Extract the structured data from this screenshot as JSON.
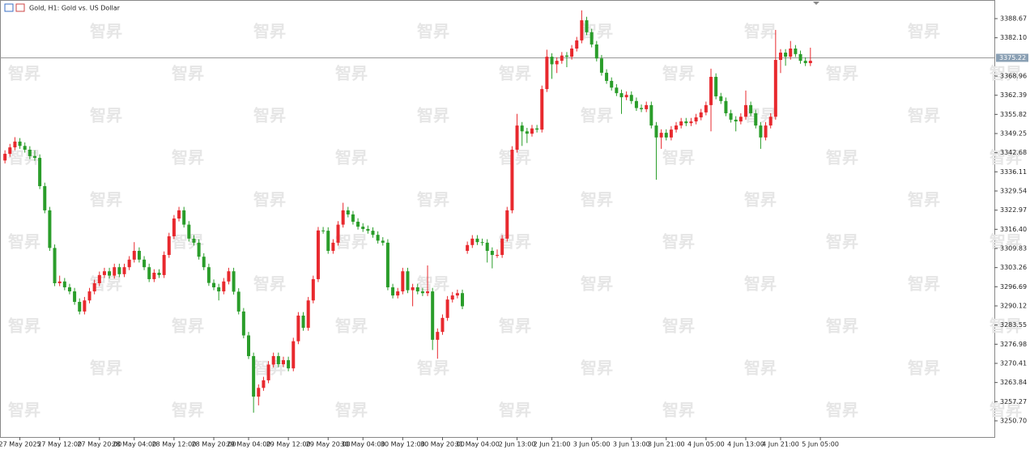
{
  "chart_data": {
    "type": "candlestick",
    "title": "Gold, H1:  Gold vs. US Dollar",
    "watermark": "智昇",
    "up_color": "#e8292e",
    "down_color": "#2a9d2a",
    "last_price": 3375.22,
    "ylim": [
      3245.15,
      3394.5
    ],
    "yticks": [
      3388.67,
      {
        "value": 3382.1,
        "label": "3382.10"
      },
      3368.96,
      3362.39,
      3355.82,
      3349.25,
      3342.68,
      3336.11,
      3329.54,
      3322.97,
      {
        "value": 3316.4,
        "label": "3316.40"
      },
      3309.83,
      3303.26,
      3296.69,
      3290.12,
      3283.55,
      3276.98,
      3270.41,
      3263.84,
      3257.27,
      {
        "value": 3250.7,
        "label": "3250.70"
      }
    ],
    "xlim": [
      -1,
      199
    ],
    "xticks": [
      {
        "value": 3,
        "label": "27 May 2025"
      },
      {
        "value": 11,
        "label": "27 May 12:00"
      },
      {
        "value": 19,
        "label": "27 May 20:00"
      },
      {
        "value": 26,
        "label": "28 May 04:00"
      },
      {
        "value": 34,
        "label": "28 May 12:00"
      },
      {
        "value": 42,
        "label": "28 May 20:00"
      },
      {
        "value": 49,
        "label": "29 May 04:00"
      },
      {
        "value": 57,
        "label": "29 May 12:00"
      },
      {
        "value": 65,
        "label": "29 May 20:00"
      },
      {
        "value": 72,
        "label": "30 May 04:00"
      },
      {
        "value": 80,
        "label": "30 May 12:00"
      },
      {
        "value": 88,
        "label": "30 May 20:00"
      },
      {
        "value": 95,
        "label": "31 May 04:00"
      },
      {
        "value": 103,
        "label": "2 Jun 13:00"
      },
      {
        "value": 110,
        "label": "2 Jun 21:00"
      },
      {
        "value": 118,
        "label": "3 Jun 05:00"
      },
      {
        "value": 126,
        "label": "3 Jun 13:00"
      },
      {
        "value": 133,
        "label": "3 Jun 21:00"
      },
      {
        "value": 141,
        "label": "4 Jun 05:00"
      },
      {
        "value": 149,
        "label": "4 Jun 13:00"
      },
      {
        "value": 156,
        "label": "4 Jun 21:00"
      },
      {
        "value": 164,
        "label": "5 Jun 05:00"
      }
    ],
    "ohlc": [
      [
        3340.0,
        3343.5,
        3339.0,
        3342.3
      ],
      [
        3342.3,
        3345.7,
        3341.3,
        3344.5
      ],
      [
        3344.5,
        3348.0,
        3343.5,
        3346.5
      ],
      [
        3346.5,
        3347.7,
        3344.0,
        3345.0
      ],
      [
        3345.0,
        3346.2,
        3342.7,
        3343.7
      ],
      [
        3343.7,
        3344.9,
        3340.5,
        3341.5
      ],
      [
        3341.5,
        3343.5,
        3339.9,
        3340.9
      ],
      [
        3340.9,
        3342.1,
        3330.2,
        3331.2
      ],
      [
        3331.2,
        3332.4,
        3321.9,
        3322.9
      ],
      [
        3322.9,
        3324.1,
        3309.0,
        3310.0
      ],
      [
        3310.0,
        3311.2,
        3296.9,
        3297.9
      ],
      [
        3297.9,
        3300.5,
        3296.9,
        3298.5
      ],
      [
        3298.5,
        3299.7,
        3295.5,
        3296.5
      ],
      [
        3296.5,
        3297.7,
        3294.1,
        3295.1
      ],
      [
        3295.1,
        3296.3,
        3290.5,
        3291.5
      ],
      [
        3291.5,
        3292.7,
        3287.2,
        3288.2
      ],
      [
        3288.2,
        3293.2,
        3287.2,
        3292.0
      ],
      [
        3292.0,
        3296.3,
        3291.0,
        3295.1
      ],
      [
        3295.1,
        3299.1,
        3294.1,
        3297.9
      ],
      [
        3297.9,
        3301.9,
        3296.9,
        3300.7
      ],
      [
        3300.7,
        3303.2,
        3299.7,
        3302.0
      ],
      [
        3302.0,
        3303.2,
        3299.5,
        3300.5
      ],
      [
        3300.5,
        3304.6,
        3299.5,
        3303.4
      ],
      [
        3303.4,
        3304.6,
        3300.0,
        3301.0
      ],
      [
        3301.0,
        3304.6,
        3300.0,
        3303.4
      ],
      [
        3303.4,
        3307.2,
        3302.4,
        3306.0
      ],
      [
        3306.0,
        3312.0,
        3305.0,
        3309.0
      ],
      [
        3309.0,
        3310.2,
        3305.0,
        3306.0
      ],
      [
        3306.0,
        3307.2,
        3302.4,
        3303.4
      ],
      [
        3303.4,
        3304.6,
        3298.3,
        3299.3
      ],
      [
        3299.3,
        3302.7,
        3298.3,
        3301.5
      ],
      [
        3301.5,
        3302.7,
        3299.7,
        3300.7
      ],
      [
        3300.7,
        3308.8,
        3299.7,
        3307.6
      ],
      [
        3307.6,
        3315.2,
        3306.6,
        3314.0
      ],
      [
        3314.0,
        3321.3,
        3313.0,
        3320.1
      ],
      [
        3320.1,
        3324.1,
        3319.1,
        3322.9
      ],
      [
        3322.9,
        3324.1,
        3317.0,
        3318.0
      ],
      [
        3318.0,
        3319.2,
        3312.2,
        3313.2
      ],
      [
        3313.2,
        3314.4,
        3310.8,
        3311.8
      ],
      [
        3311.8,
        3313.0,
        3306.0,
        3307.0
      ],
      [
        3307.0,
        3308.2,
        3302.4,
        3303.4
      ],
      [
        3303.4,
        3304.6,
        3297.0,
        3298.0
      ],
      [
        3298.0,
        3299.2,
        3295.5,
        3296.5
      ],
      [
        3296.5,
        3297.7,
        3292.0,
        3295.1
      ],
      [
        3295.1,
        3299.7,
        3294.1,
        3298.5
      ],
      [
        3298.5,
        3303.2,
        3297.5,
        3302.0
      ],
      [
        3302.0,
        3303.2,
        3294.0,
        3295.0
      ],
      [
        3295.0,
        3296.2,
        3287.2,
        3288.2
      ],
      [
        3288.2,
        3289.4,
        3279.0,
        3280.0
      ],
      [
        3280.0,
        3281.2,
        3271.9,
        3272.9
      ],
      [
        3272.9,
        3274.1,
        3253.5,
        3259.0
      ],
      [
        3259.0,
        3263.2,
        3256.0,
        3262.0
      ],
      [
        3262.0,
        3265.8,
        3261.0,
        3264.6
      ],
      [
        3264.6,
        3271.2,
        3263.6,
        3270.0
      ],
      [
        3270.0,
        3274.1,
        3269.0,
        3272.9
      ],
      [
        3272.9,
        3274.1,
        3269.1,
        3270.1
      ],
      [
        3270.1,
        3272.7,
        3269.1,
        3271.5
      ],
      [
        3271.5,
        3272.7,
        3267.7,
        3268.7
      ],
      [
        3268.7,
        3279.2,
        3267.7,
        3278.0
      ],
      [
        3278.0,
        3288.0,
        3277.0,
        3286.8
      ],
      [
        3286.8,
        3288.0,
        3281.6,
        3282.6
      ],
      [
        3282.6,
        3293.2,
        3281.6,
        3292.0
      ],
      [
        3292.0,
        3300.5,
        3291.0,
        3299.3
      ],
      [
        3299.3,
        3317.2,
        3298.3,
        3316.0
      ],
      [
        3316.0,
        3317.2,
        3314.9,
        3315.9
      ],
      [
        3315.9,
        3317.1,
        3308.0,
        3309.0
      ],
      [
        3309.0,
        3313.0,
        3308.0,
        3311.8
      ],
      [
        3311.8,
        3319.2,
        3310.8,
        3318.0
      ],
      [
        3318.0,
        3325.5,
        3317.0,
        3322.9
      ],
      [
        3322.9,
        3324.1,
        3320.5,
        3321.5
      ],
      [
        3321.5,
        3322.7,
        3318.0,
        3319.0
      ],
      [
        3319.0,
        3320.2,
        3316.3,
        3317.3
      ],
      [
        3317.3,
        3318.5,
        3315.5,
        3316.5
      ],
      [
        3316.5,
        3317.7,
        3314.9,
        3315.9
      ],
      [
        3315.9,
        3317.1,
        3313.5,
        3314.5
      ],
      [
        3314.5,
        3315.7,
        3311.5,
        3312.5
      ],
      [
        3312.5,
        3313.7,
        3310.8,
        3311.8
      ],
      [
        3311.8,
        3313.0,
        3295.5,
        3296.5
      ],
      [
        3296.5,
        3297.7,
        3292.7,
        3293.7
      ],
      [
        3293.7,
        3296.3,
        3292.7,
        3295.1
      ],
      [
        3295.1,
        3303.2,
        3294.1,
        3302.0
      ],
      [
        3302.0,
        3303.2,
        3294.5,
        3295.5
      ],
      [
        3295.5,
        3297.7,
        3290.0,
        3296.5
      ],
      [
        3296.5,
        3297.7,
        3294.1,
        3295.1
      ],
      [
        3295.1,
        3296.3,
        3293.5,
        3294.5
      ],
      [
        3294.5,
        3304.0,
        3293.5,
        3295.1
      ],
      [
        3295.1,
        3296.3,
        3275.0,
        3278.5
      ],
      [
        3278.5,
        3282.4,
        3272.0,
        3281.2
      ],
      [
        3281.2,
        3287.2,
        3280.2,
        3286.0
      ],
      [
        3286.0,
        3293.5,
        3285.0,
        3292.3
      ],
      [
        3292.3,
        3294.9,
        3291.3,
        3293.7
      ],
      [
        3293.7,
        3295.7,
        3292.7,
        3294.5
      ],
      [
        3294.5,
        3295.7,
        3289.0,
        3290.0
      ],
      [
        3309.0,
        3312.2,
        3308.0,
        3311.0
      ],
      [
        3311.0,
        3314.4,
        3310.0,
        3313.2
      ],
      [
        3313.2,
        3314.4,
        3311.0,
        3312.0
      ],
      [
        3312.0,
        3313.2,
        3310.8,
        3311.8
      ],
      [
        3311.8,
        3313.0,
        3305.0,
        3309.0
      ],
      [
        3309.0,
        3310.2,
        3303.0,
        3307.6
      ],
      [
        3307.6,
        3309.5,
        3306.6,
        3307.6
      ],
      [
        3307.6,
        3314.4,
        3306.6,
        3313.2
      ],
      [
        3313.2,
        3324.1,
        3312.2,
        3322.9
      ],
      [
        3322.9,
        3344.9,
        3321.9,
        3343.7
      ],
      [
        3343.7,
        3356.0,
        3342.7,
        3352.0
      ],
      [
        3352.0,
        3353.2,
        3345.0,
        3350.0
      ],
      [
        3350.0,
        3351.2,
        3346.0,
        3349.2
      ],
      [
        3349.2,
        3352.2,
        3348.2,
        3351.0
      ],
      [
        3351.0,
        3352.2,
        3349.6,
        3350.6
      ],
      [
        3350.6,
        3365.7,
        3349.6,
        3364.5
      ],
      [
        3364.5,
        3378.0,
        3363.5,
        3375.6
      ],
      [
        3375.6,
        3376.8,
        3368.0,
        3373.0
      ],
      [
        3373.0,
        3375.4,
        3370.0,
        3374.2
      ],
      [
        3374.2,
        3377.2,
        3373.2,
        3376.0
      ],
      [
        3376.0,
        3377.2,
        3372.0,
        3375.6
      ],
      [
        3375.6,
        3379.6,
        3374.6,
        3378.4
      ],
      [
        3378.4,
        3382.4,
        3377.4,
        3381.2
      ],
      [
        3381.2,
        3391.5,
        3380.2,
        3388.1
      ],
      [
        3388.1,
        3389.3,
        3383.0,
        3384.0
      ],
      [
        3384.0,
        3385.2,
        3378.8,
        3379.8
      ],
      [
        3379.8,
        3381.0,
        3374.0,
        3375.0
      ],
      [
        3375.0,
        3376.2,
        3369.1,
        3370.1
      ],
      [
        3370.1,
        3371.3,
        3366.3,
        3367.3
      ],
      [
        3367.3,
        3368.5,
        3364.0,
        3365.0
      ],
      [
        3365.0,
        3366.2,
        3362.1,
        3363.1
      ],
      [
        3363.1,
        3364.3,
        3356.0,
        3361.7
      ],
      [
        3361.7,
        3363.7,
        3360.7,
        3362.5
      ],
      [
        3362.5,
        3363.7,
        3359.4,
        3360.4
      ],
      [
        3360.4,
        3361.6,
        3357.0,
        3358.0
      ],
      [
        3358.0,
        3359.2,
        3356.6,
        3357.6
      ],
      [
        3357.6,
        3360.2,
        3356.6,
        3359.0
      ],
      [
        3359.0,
        3360.2,
        3351.0,
        3352.0
      ],
      [
        3352.0,
        3353.2,
        3333.4,
        3347.9
      ],
      [
        3347.9,
        3350.7,
        3344.0,
        3349.5
      ],
      [
        3349.5,
        3350.7,
        3346.9,
        3347.9
      ],
      [
        3347.9,
        3351.8,
        3346.9,
        3350.6
      ],
      [
        3350.6,
        3353.2,
        3349.6,
        3352.0
      ],
      [
        3352.0,
        3354.6,
        3351.0,
        3353.4
      ],
      [
        3353.4,
        3354.6,
        3351.8,
        3352.8
      ],
      [
        3352.8,
        3354.6,
        3351.8,
        3353.4
      ],
      [
        3353.4,
        3356.0,
        3352.4,
        3354.8
      ],
      [
        3354.8,
        3357.7,
        3353.8,
        3356.5
      ],
      [
        3356.5,
        3360.2,
        3355.5,
        3359.0
      ],
      [
        3359.0,
        3371.5,
        3350.0,
        3368.7
      ],
      [
        3368.7,
        3369.9,
        3361.0,
        3362.0
      ],
      [
        3362.0,
        3363.2,
        3359.4,
        3360.4
      ],
      [
        3360.4,
        3361.6,
        3355.2,
        3356.2
      ],
      [
        3356.2,
        3357.4,
        3353.0,
        3354.0
      ],
      [
        3354.0,
        3355.2,
        3350.0,
        3353.4
      ],
      [
        3353.4,
        3356.2,
        3352.4,
        3355.0
      ],
      [
        3355.0,
        3364.0,
        3354.0,
        3359.0
      ],
      [
        3359.0,
        3360.2,
        3355.2,
        3356.2
      ],
      [
        3356.2,
        3357.4,
        3351.0,
        3352.0
      ],
      [
        3352.0,
        3353.2,
        3344.0,
        3347.9
      ],
      [
        3347.9,
        3353.2,
        3346.9,
        3352.0
      ],
      [
        3352.0,
        3356.2,
        3351.0,
        3355.0
      ],
      [
        3355.0,
        3384.8,
        3354.0,
        3374.5
      ],
      [
        3374.5,
        3378.2,
        3370.0,
        3377.0
      ],
      [
        3377.0,
        3378.2,
        3372.5,
        3375.6
      ],
      [
        3375.6,
        3381.0,
        3374.6,
        3378.4
      ],
      [
        3378.4,
        3379.6,
        3375.5,
        3376.5
      ],
      [
        3376.5,
        3377.7,
        3373.2,
        3374.2
      ],
      [
        3374.2,
        3375.4,
        3372.4,
        3373.4
      ],
      [
        3373.4,
        3378.7,
        3372.4,
        3374.2
      ]
    ]
  }
}
